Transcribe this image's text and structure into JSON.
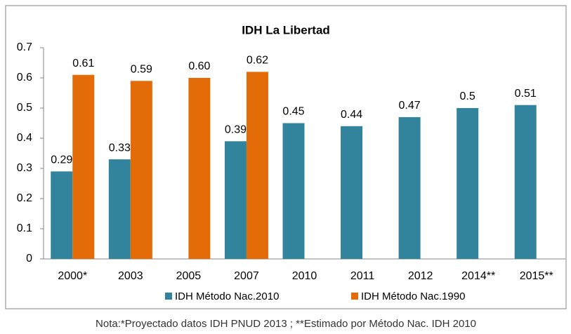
{
  "chart_data": {
    "type": "bar",
    "title": "IDH La Libertad",
    "categories": [
      "2000*",
      "2003",
      "2005",
      "2007",
      "2010",
      "2011",
      "2012",
      "2014**",
      "2015**"
    ],
    "series": [
      {
        "name": "IDH Método Nac.2010",
        "color": "#31849b",
        "values": [
          0.29,
          0.33,
          null,
          0.39,
          0.45,
          0.44,
          0.47,
          0.5,
          0.51
        ],
        "value_labels": [
          "0.29",
          "0.33",
          null,
          "0.39",
          "0.45",
          "0.44",
          "0.47",
          "0.5",
          "0.51"
        ]
      },
      {
        "name": "IDH Método Nac.1990",
        "color": "#e36c09",
        "values": [
          0.61,
          0.59,
          0.6,
          0.62,
          null,
          null,
          null,
          null,
          null
        ],
        "value_labels": [
          "0.61",
          "0.59",
          "0.60",
          "0.62",
          null,
          null,
          null,
          null,
          null
        ]
      }
    ],
    "ylim": [
      0,
      0.7
    ],
    "yticks": [
      0,
      0.1,
      0.2,
      0.3,
      0.4,
      0.5,
      0.6,
      0.7
    ],
    "grid": false,
    "legend": "bottom",
    "note": "Nota:*Proyectado datos IDH PNUD 2013 ;  **Estimado por Método Nac. IDH 2010"
  }
}
